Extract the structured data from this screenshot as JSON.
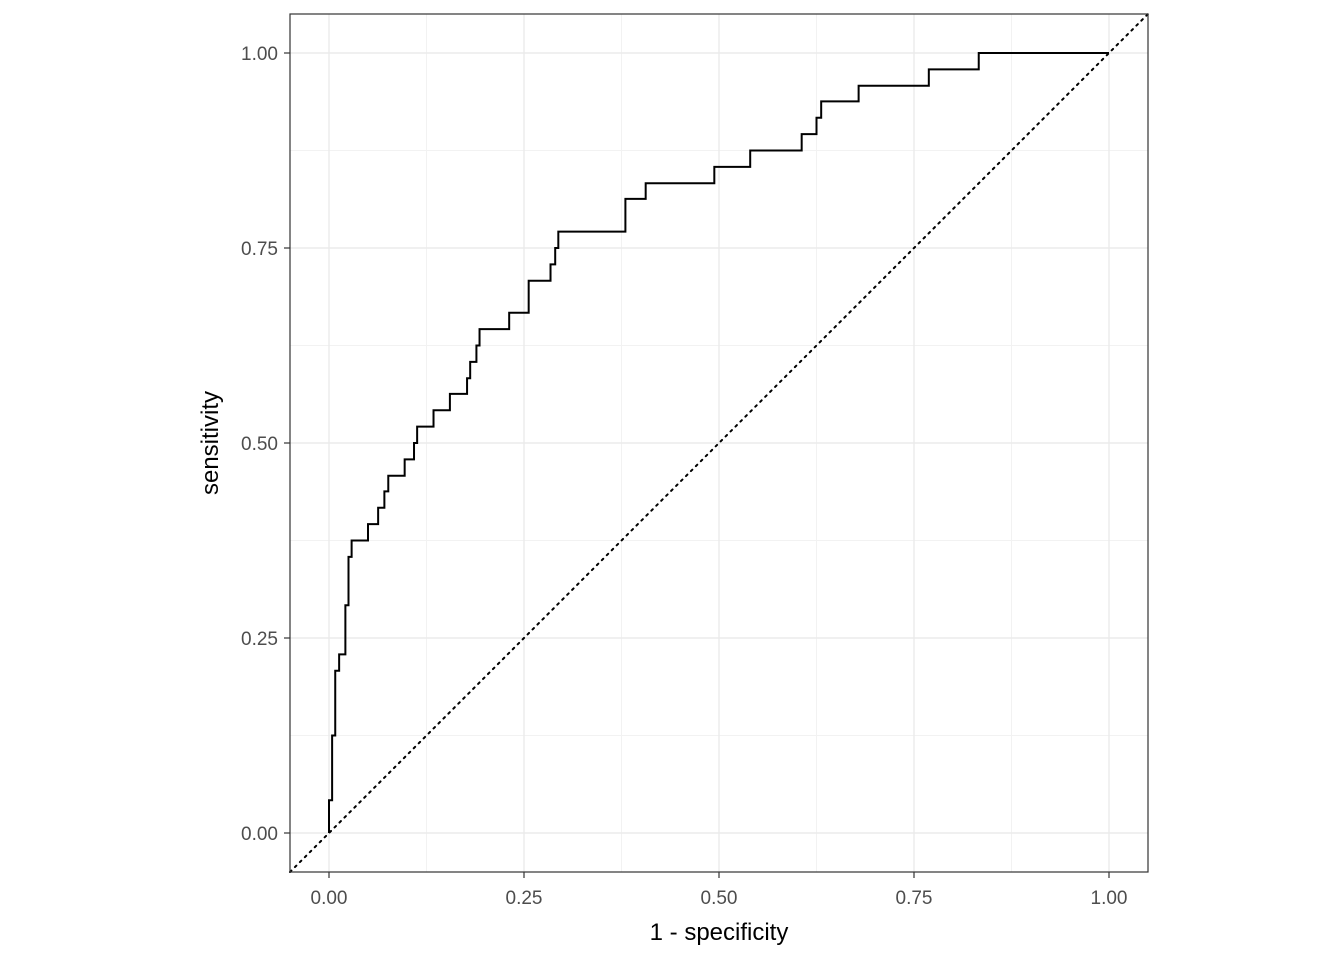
{
  "chart_data": {
    "type": "line",
    "title": "",
    "xlabel": "1 - specificity",
    "ylabel": "sensitivity",
    "xlim": [
      -0.05,
      1.05
    ],
    "ylim": [
      -0.05,
      1.05
    ],
    "x_ticks": [
      0,
      0.25,
      0.5,
      0.75,
      1
    ],
    "x_tick_labels": [
      "0.00",
      "0.25",
      "0.50",
      "0.75",
      "1.00"
    ],
    "y_ticks": [
      0,
      0.25,
      0.5,
      0.75,
      1
    ],
    "y_tick_labels": [
      "0.00",
      "0.25",
      "0.50",
      "0.75",
      "1.00"
    ],
    "grid": true,
    "aspect": "equal",
    "series": [
      {
        "style": "step",
        "color": "#000000",
        "points": [
          [
            0.0,
            0.0
          ],
          [
            0.0,
            0.042
          ],
          [
            0.004,
            0.042
          ],
          [
            0.004,
            0.125
          ],
          [
            0.008,
            0.125
          ],
          [
            0.008,
            0.208
          ],
          [
            0.013,
            0.208
          ],
          [
            0.013,
            0.229
          ],
          [
            0.021,
            0.229
          ],
          [
            0.021,
            0.292
          ],
          [
            0.025,
            0.292
          ],
          [
            0.025,
            0.354
          ],
          [
            0.029,
            0.354
          ],
          [
            0.029,
            0.375
          ],
          [
            0.05,
            0.375
          ],
          [
            0.05,
            0.396
          ],
          [
            0.063,
            0.396
          ],
          [
            0.063,
            0.417
          ],
          [
            0.071,
            0.417
          ],
          [
            0.071,
            0.438
          ],
          [
            0.076,
            0.438
          ],
          [
            0.076,
            0.458
          ],
          [
            0.097,
            0.458
          ],
          [
            0.097,
            0.479
          ],
          [
            0.109,
            0.479
          ],
          [
            0.109,
            0.5
          ],
          [
            0.113,
            0.5
          ],
          [
            0.113,
            0.521
          ],
          [
            0.134,
            0.521
          ],
          [
            0.134,
            0.542
          ],
          [
            0.155,
            0.542
          ],
          [
            0.155,
            0.563
          ],
          [
            0.177,
            0.563
          ],
          [
            0.177,
            0.583
          ],
          [
            0.181,
            0.583
          ],
          [
            0.181,
            0.604
          ],
          [
            0.189,
            0.604
          ],
          [
            0.189,
            0.625
          ],
          [
            0.193,
            0.625
          ],
          [
            0.193,
            0.646
          ],
          [
            0.231,
            0.646
          ],
          [
            0.231,
            0.667
          ],
          [
            0.256,
            0.667
          ],
          [
            0.256,
            0.708
          ],
          [
            0.284,
            0.708
          ],
          [
            0.284,
            0.729
          ],
          [
            0.29,
            0.729
          ],
          [
            0.29,
            0.75
          ],
          [
            0.294,
            0.75
          ],
          [
            0.294,
            0.771
          ],
          [
            0.38,
            0.771
          ],
          [
            0.38,
            0.813
          ],
          [
            0.406,
            0.813
          ],
          [
            0.406,
            0.833
          ],
          [
            0.494,
            0.833
          ],
          [
            0.494,
            0.854
          ],
          [
            0.54,
            0.854
          ],
          [
            0.54,
            0.875
          ],
          [
            0.606,
            0.875
          ],
          [
            0.606,
            0.896
          ],
          [
            0.625,
            0.896
          ],
          [
            0.625,
            0.917
          ],
          [
            0.631,
            0.917
          ],
          [
            0.631,
            0.938
          ],
          [
            0.679,
            0.938
          ],
          [
            0.679,
            0.958
          ],
          [
            0.769,
            0.958
          ],
          [
            0.769,
            0.979
          ],
          [
            0.833,
            0.979
          ],
          [
            0.833,
            1.0
          ],
          [
            1.0,
            1.0
          ]
        ]
      },
      {
        "style": "dotted",
        "color": "#000000",
        "points": [
          [
            -0.05,
            -0.05
          ],
          [
            1.05,
            1.05
          ]
        ]
      }
    ]
  }
}
